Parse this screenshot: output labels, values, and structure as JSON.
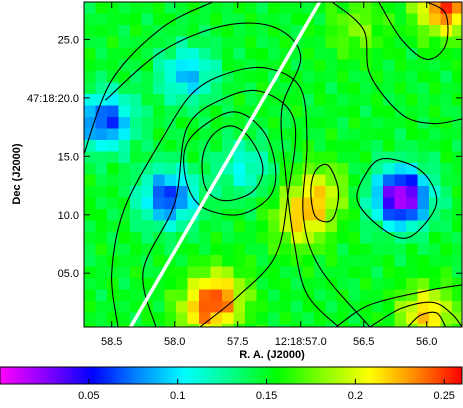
{
  "chart_data": {
    "type": "heatmap",
    "title": "",
    "xlabel": "R. A. (J2000)",
    "ylabel": "Dec (J2000)",
    "x_ticks": [
      {
        "label": "58.5",
        "ra_s": 58.5
      },
      {
        "label": "58.0",
        "ra_s": 58.0
      },
      {
        "label": "57.5",
        "ra_s": 57.5
      },
      {
        "label": "12:18:57.0",
        "ra_s": 57.0
      },
      {
        "label": "56.5",
        "ra_s": 56.5
      },
      {
        "label": "56.0",
        "ra_s": 56.0
      }
    ],
    "y_ticks": [
      {
        "label": "25.0",
        "dec_s": 25.0
      },
      {
        "label": "47:18:20.0",
        "dec_s": 20.0
      },
      {
        "label": "15.0",
        "dec_s": 15.0
      },
      {
        "label": "10.0",
        "dec_s": 10.0
      },
      {
        "label": "05.0",
        "dec_s": 5.0
      }
    ],
    "xlim_ra_s": [
      58.72,
      55.72
    ],
    "ylim_dec_s": [
      0.4,
      28.2
    ],
    "colorbar": {
      "min": 0.0,
      "max": 0.26,
      "ticks": [
        {
          "label": "0.05",
          "value": 0.05
        },
        {
          "label": "0.1",
          "value": 0.1
        },
        {
          "label": "0.15",
          "value": 0.15
        },
        {
          "label": "0.2",
          "value": 0.2
        },
        {
          "label": "0.25",
          "value": 0.25
        }
      ],
      "colormap": [
        "#ff00ff",
        "#8800ff",
        "#0000ff",
        "#0088ff",
        "#00ffff",
        "#00ff88",
        "#00ff00",
        "#88ff00",
        "#ffff00",
        "#ff8800",
        "#ff0000"
      ]
    },
    "features": [
      {
        "kind": "minimum",
        "ra_s": 56.2,
        "dec_s": 11.5,
        "value": 0.01
      },
      {
        "kind": "minimum",
        "ra_s": 58.05,
        "dec_s": 11.5,
        "value": 0.06
      },
      {
        "kind": "minimum",
        "ra_s": 58.55,
        "dec_s": 18.0,
        "value": 0.06
      },
      {
        "kind": "minimum",
        "ra_s": 57.9,
        "dec_s": 22.0,
        "value": 0.09
      },
      {
        "kind": "minimum",
        "ra_s": 57.45,
        "dec_s": 14.0,
        "value": 0.11
      },
      {
        "kind": "maximum",
        "ra_s": 55.85,
        "dec_s": 27.8,
        "value": 0.25
      },
      {
        "kind": "maximum",
        "ra_s": 57.65,
        "dec_s": 3.0,
        "value": 0.22
      },
      {
        "kind": "maximum",
        "ra_s": 57.0,
        "dec_s": 9.5,
        "value": 0.21
      },
      {
        "kind": "maximum",
        "ra_s": 57.78,
        "dec_s": 1.5,
        "value": 0.2
      },
      {
        "kind": "maximum",
        "ra_s": 56.85,
        "dec_s": 12.0,
        "value": 0.2
      },
      {
        "kind": "maximum",
        "ra_s": 56.0,
        "dec_s": 1.5,
        "value": 0.22
      },
      {
        "kind": "maximum",
        "ra_s": 56.55,
        "dec_s": 26.0,
        "value": 0.18
      }
    ],
    "background_value": 0.15,
    "contours": [
      {
        "closed": true,
        "points": [
          [
            57.55,
            17.6
          ],
          [
            57.4,
            16.5
          ],
          [
            57.3,
            14.0
          ],
          [
            57.38,
            12.0
          ],
          [
            57.6,
            11.2
          ],
          [
            57.75,
            12.2
          ],
          [
            57.78,
            14.8
          ],
          [
            57.7,
            16.8
          ]
        ]
      },
      {
        "closed": true,
        "points": [
          [
            57.55,
            18.8
          ],
          [
            57.3,
            17.2
          ],
          [
            57.2,
            14.0
          ],
          [
            57.25,
            11.5
          ],
          [
            57.5,
            10.0
          ],
          [
            57.8,
            10.8
          ],
          [
            57.92,
            13.5
          ],
          [
            57.88,
            16.5
          ]
        ]
      },
      {
        "closed": true,
        "points": [
          [
            56.35,
            14.8
          ],
          [
            56.05,
            13.8
          ],
          [
            55.92,
            11.2
          ],
          [
            56.05,
            8.8
          ],
          [
            56.2,
            8.0
          ],
          [
            56.4,
            9.2
          ],
          [
            56.55,
            11.2
          ],
          [
            56.5,
            13.2
          ]
        ]
      },
      {
        "closed": true,
        "points": [
          [
            56.78,
            14.2
          ],
          [
            56.7,
            12.0
          ],
          [
            56.75,
            9.6
          ],
          [
            56.88,
            9.8
          ],
          [
            56.92,
            12.0
          ],
          [
            56.88,
            13.8
          ]
        ]
      },
      {
        "closed": false,
        "points": [
          [
            58.55,
            19.8
          ],
          [
            58.1,
            24.0
          ],
          [
            57.6,
            26.2
          ],
          [
            57.2,
            26.0
          ],
          [
            57.0,
            23.5
          ],
          [
            57.15,
            19.0
          ],
          [
            57.12,
            13.5
          ],
          [
            57.05,
            7.5
          ],
          [
            56.95,
            3.2
          ],
          [
            56.7,
            0.4
          ]
        ]
      },
      {
        "closed": false,
        "points": [
          [
            58.72,
            15.2
          ],
          [
            58.5,
            21.5
          ],
          [
            58.1,
            26.0
          ],
          [
            57.7,
            28.2
          ]
        ]
      },
      {
        "closed": false,
        "points": [
          [
            58.45,
            0.4
          ],
          [
            58.5,
            5.0
          ],
          [
            58.4,
            10.5
          ],
          [
            58.1,
            16.5
          ],
          [
            57.85,
            20.5
          ],
          [
            57.55,
            22.2
          ],
          [
            57.25,
            22.5
          ],
          [
            57.0,
            20.8
          ],
          [
            56.95,
            16.0
          ],
          [
            56.98,
            10.0
          ],
          [
            56.85,
            5.5
          ],
          [
            56.45,
            0.4
          ]
        ]
      },
      {
        "closed": false,
        "points": [
          [
            58.15,
            0.4
          ],
          [
            58.25,
            5.2
          ],
          [
            58.0,
            11.0
          ],
          [
            57.9,
            17.5
          ],
          [
            57.6,
            20.0
          ],
          [
            57.3,
            20.5
          ],
          [
            57.05,
            18.0
          ],
          [
            57.1,
            11.8
          ],
          [
            57.2,
            6.5
          ],
          [
            57.5,
            3.0
          ],
          [
            57.8,
            0.4
          ]
        ]
      },
      {
        "closed": false,
        "points": [
          [
            56.75,
            28.2
          ],
          [
            56.5,
            25.8
          ],
          [
            56.45,
            22.0
          ],
          [
            56.2,
            18.6
          ],
          [
            55.95,
            17.8
          ],
          [
            55.72,
            18.2
          ]
        ]
      },
      {
        "closed": false,
        "points": [
          [
            56.38,
            28.2
          ],
          [
            56.2,
            25.0
          ],
          [
            56.0,
            23.3
          ],
          [
            55.85,
            24.5
          ],
          [
            55.85,
            27.2
          ],
          [
            56.0,
            28.2
          ]
        ]
      },
      {
        "closed": false,
        "points": [
          [
            56.72,
            0.4
          ],
          [
            56.45,
            2.3
          ],
          [
            56.0,
            3.5
          ],
          [
            55.72,
            4.0
          ]
        ]
      },
      {
        "closed": false,
        "points": [
          [
            56.45,
            0.4
          ],
          [
            56.2,
            2.0
          ],
          [
            55.95,
            2.5
          ],
          [
            55.8,
            1.5
          ],
          [
            55.72,
            0.4
          ]
        ]
      },
      {
        "closed": false,
        "points": [
          [
            56.15,
            0.4
          ],
          [
            56.05,
            1.4
          ],
          [
            55.92,
            1.6
          ],
          [
            55.85,
            0.4
          ]
        ]
      }
    ],
    "overlay_line": {
      "color": "#ffffff",
      "from": [
        58.35,
        0.4
      ],
      "to": [
        56.85,
        28.2
      ]
    }
  }
}
